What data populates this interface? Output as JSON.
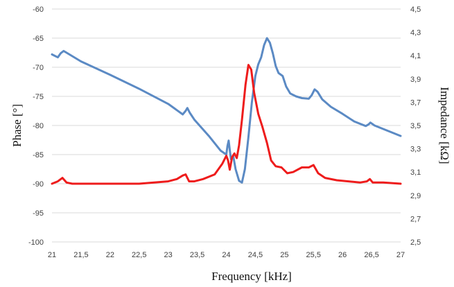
{
  "chart_data": {
    "type": "line",
    "title": "",
    "xlabel": "Frequency  [kHz]",
    "ylabel": "Phase  [°]",
    "y2label": "Impedance  [kΩ]",
    "xlim": [
      21,
      27
    ],
    "ylim": [
      -100,
      -60
    ],
    "y2lim": [
      2.5,
      4.5
    ],
    "grid": "horizontal",
    "legend": "none",
    "x_ticks": [
      "21",
      "21,5",
      "22",
      "22,5",
      "23",
      "23,5",
      "24",
      "24,5",
      "25",
      "25,5",
      "26",
      "26,5",
      "27"
    ],
    "y_ticks": [
      "-60",
      "-65",
      "-70",
      "-75",
      "-80",
      "-85",
      "-90",
      "-95",
      "-100"
    ],
    "y2_ticks": [
      "4,5",
      "4,3",
      "4,1",
      "3,9",
      "3,7",
      "3,5",
      "3,3",
      "3,1",
      "2,9",
      "2,7",
      "2,5"
    ],
    "series": [
      {
        "axis": "left",
        "color": "#5b8ac4",
        "points": [
          [
            21.0,
            -67.8
          ],
          [
            21.1,
            -68.3
          ],
          [
            21.15,
            -67.6
          ],
          [
            21.2,
            -67.2
          ],
          [
            21.25,
            -67.5
          ],
          [
            21.5,
            -69.0
          ],
          [
            22.0,
            -71.3
          ],
          [
            22.5,
            -73.7
          ],
          [
            23.0,
            -76.3
          ],
          [
            23.25,
            -78.1
          ],
          [
            23.3,
            -77.5
          ],
          [
            23.33,
            -77.0
          ],
          [
            23.37,
            -77.8
          ],
          [
            23.45,
            -79.0
          ],
          [
            23.7,
            -81.8
          ],
          [
            23.9,
            -84.3
          ],
          [
            24.0,
            -85.0
          ],
          [
            24.02,
            -83.5
          ],
          [
            24.04,
            -82.6
          ],
          [
            24.06,
            -84.2
          ],
          [
            24.08,
            -85.8
          ],
          [
            24.12,
            -85.3
          ],
          [
            24.16,
            -87.5
          ],
          [
            24.22,
            -89.5
          ],
          [
            24.27,
            -89.8
          ],
          [
            24.32,
            -87.5
          ],
          [
            24.38,
            -82.0
          ],
          [
            24.44,
            -76.0
          ],
          [
            24.5,
            -71.5
          ],
          [
            24.55,
            -69.5
          ],
          [
            24.6,
            -68.3
          ],
          [
            24.65,
            -66.2
          ],
          [
            24.7,
            -65.0
          ],
          [
            24.75,
            -65.8
          ],
          [
            24.8,
            -67.6
          ],
          [
            24.85,
            -69.8
          ],
          [
            24.9,
            -71.0
          ],
          [
            24.97,
            -71.5
          ],
          [
            25.03,
            -73.3
          ],
          [
            25.1,
            -74.5
          ],
          [
            25.2,
            -75.0
          ],
          [
            25.3,
            -75.3
          ],
          [
            25.42,
            -75.4
          ],
          [
            25.47,
            -74.8
          ],
          [
            25.52,
            -73.8
          ],
          [
            25.57,
            -74.2
          ],
          [
            25.65,
            -75.5
          ],
          [
            25.8,
            -76.8
          ],
          [
            26.0,
            -78.0
          ],
          [
            26.2,
            -79.3
          ],
          [
            26.4,
            -80.1
          ],
          [
            26.45,
            -79.8
          ],
          [
            26.48,
            -79.5
          ],
          [
            26.55,
            -80.0
          ],
          [
            27.0,
            -81.8
          ]
        ]
      },
      {
        "axis": "right",
        "color": "#ee1c1c",
        "points": [
          [
            21.0,
            3.0
          ],
          [
            21.1,
            3.02
          ],
          [
            21.18,
            3.05
          ],
          [
            21.25,
            3.01
          ],
          [
            21.35,
            3.0
          ],
          [
            21.5,
            3.0
          ],
          [
            22.0,
            3.0
          ],
          [
            22.5,
            3.0
          ],
          [
            23.0,
            3.02
          ],
          [
            23.15,
            3.04
          ],
          [
            23.25,
            3.07
          ],
          [
            23.3,
            3.08
          ],
          [
            23.36,
            3.02
          ],
          [
            23.45,
            3.02
          ],
          [
            23.6,
            3.04
          ],
          [
            23.8,
            3.08
          ],
          [
            23.93,
            3.17
          ],
          [
            24.0,
            3.24
          ],
          [
            24.03,
            3.2
          ],
          [
            24.06,
            3.12
          ],
          [
            24.1,
            3.23
          ],
          [
            24.14,
            3.26
          ],
          [
            24.18,
            3.22
          ],
          [
            24.22,
            3.33
          ],
          [
            24.27,
            3.55
          ],
          [
            24.33,
            3.85
          ],
          [
            24.38,
            4.02
          ],
          [
            24.43,
            3.98
          ],
          [
            24.48,
            3.78
          ],
          [
            24.55,
            3.6
          ],
          [
            24.62,
            3.49
          ],
          [
            24.7,
            3.35
          ],
          [
            24.77,
            3.2
          ],
          [
            24.85,
            3.15
          ],
          [
            24.95,
            3.14
          ],
          [
            25.05,
            3.09
          ],
          [
            25.15,
            3.1
          ],
          [
            25.3,
            3.14
          ],
          [
            25.42,
            3.14
          ],
          [
            25.5,
            3.16
          ],
          [
            25.58,
            3.09
          ],
          [
            25.7,
            3.05
          ],
          [
            25.9,
            3.03
          ],
          [
            26.1,
            3.02
          ],
          [
            26.3,
            3.01
          ],
          [
            26.42,
            3.02
          ],
          [
            26.47,
            3.04
          ],
          [
            26.52,
            3.01
          ],
          [
            26.7,
            3.01
          ],
          [
            27.0,
            3.0
          ]
        ]
      }
    ]
  }
}
